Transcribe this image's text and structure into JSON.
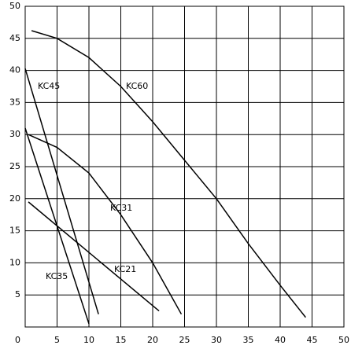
{
  "chart_data": {
    "type": "line",
    "xlim": [
      0,
      50
    ],
    "ylim": [
      0,
      50
    ],
    "xticks": [
      5,
      10,
      15,
      20,
      25,
      30,
      35,
      40,
      45,
      50
    ],
    "yticks": [
      0,
      5,
      10,
      15,
      20,
      25,
      30,
      35,
      40,
      45,
      50
    ],
    "grid": true,
    "series": [
      {
        "name": "KC60",
        "color": "#000000",
        "x": [
          1,
          5,
          10,
          15,
          20,
          25,
          30,
          35,
          40,
          44
        ],
        "values": [
          46.2,
          45,
          42,
          37.5,
          32,
          26,
          20,
          13,
          6.5,
          1.5
        ]
      },
      {
        "name": "KC45",
        "color": "#000000",
        "x": [
          0,
          11.5
        ],
        "values": [
          40.3,
          2
        ]
      },
      {
        "name": "KC31",
        "color": "#000000",
        "x": [
          0.5,
          5,
          10,
          15,
          20,
          24.5
        ],
        "values": [
          30,
          28,
          24,
          17.5,
          10,
          2
        ]
      },
      {
        "name": "KC35",
        "color": "#000000",
        "x": [
          0,
          10
        ],
        "values": [
          31,
          0.5
        ]
      },
      {
        "name": "KC21",
        "color": "#000000",
        "x": [
          0.5,
          21
        ],
        "values": [
          19.5,
          2.5
        ]
      }
    ]
  }
}
